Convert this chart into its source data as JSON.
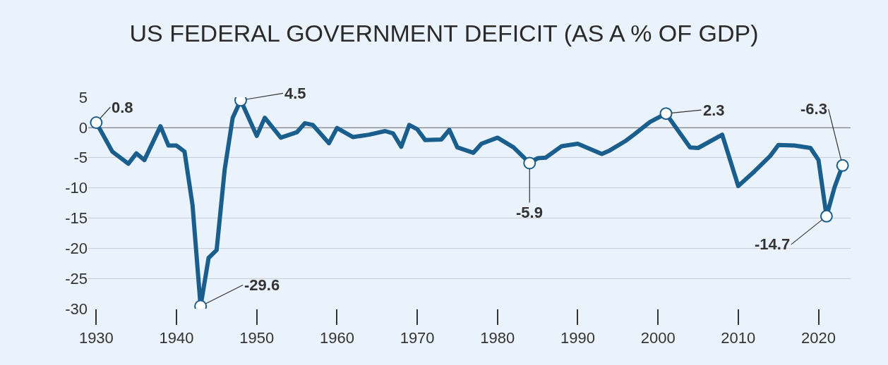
{
  "chart_data": {
    "type": "line",
    "title": "US FEDERAL GOVERNMENT DEFICIT (AS A % OF GDP)",
    "x": [
      1930,
      1932,
      1934,
      1935,
      1936,
      1938,
      1939,
      1940,
      1941,
      1942,
      1943,
      1944,
      1945,
      1946,
      1947,
      1948,
      1950,
      1951,
      1953,
      1955,
      1956,
      1957,
      1959,
      1960,
      1962,
      1964,
      1966,
      1967,
      1968,
      1969,
      1970,
      1971,
      1973,
      1974,
      1975,
      1977,
      1978,
      1980,
      1982,
      1984,
      1985,
      1986,
      1988,
      1990,
      1993,
      1994,
      1996,
      1997,
      1999,
      2001,
      2004,
      2005,
      2008,
      2010,
      2012,
      2014,
      2015,
      2017,
      2019,
      2020,
      2021,
      2022,
      2023
    ],
    "series": [
      {
        "color": "#1a5e8e",
        "values": [
          0.8,
          -4.0,
          -6.0,
          -4.3,
          -5.4,
          0.2,
          -3.0,
          -3.0,
          -4.0,
          -12.9,
          -29.6,
          -21.6,
          -20.3,
          -7.0,
          1.6,
          4.5,
          -1.4,
          1.6,
          -1.7,
          -0.8,
          0.7,
          0.4,
          -2.6,
          -0.1,
          -1.6,
          -1.2,
          -0.6,
          -1.0,
          -3.2,
          0.4,
          -0.3,
          -2.1,
          -2.0,
          -0.4,
          -3.3,
          -4.2,
          -2.7,
          -1.7,
          -3.3,
          -5.9,
          -5.1,
          -5.0,
          -3.1,
          -2.7,
          -4.4,
          -3.8,
          -2.2,
          -1.2,
          0.9,
          2.3,
          -3.3,
          -3.4,
          -1.2,
          -9.7,
          -7.3,
          -4.7,
          -2.9,
          -3.0,
          -3.4,
          -5.4,
          -14.7,
          -9.9,
          -6.3
        ]
      }
    ],
    "annotations": [
      {
        "text": "0.8",
        "x": 1930,
        "y": 0.8
      },
      {
        "text": "-29.6",
        "x": 1943,
        "y": -29.6
      },
      {
        "text": "4.5",
        "x": 1948,
        "y": 4.5
      },
      {
        "text": "-5.9",
        "x": 1984,
        "y": -5.9
      },
      {
        "text": "2.3",
        "x": 2001,
        "y": 2.3
      },
      {
        "text": "-14.7",
        "x": 2021,
        "y": -14.7
      },
      {
        "text": "-6.3",
        "x": 2023,
        "y": -6.3
      }
    ],
    "ref_lines": [
      {
        "axis": "y",
        "value": 0,
        "color": "#222222"
      }
    ],
    "xlim": [
      1929,
      2024
    ],
    "xticks": [
      1930,
      1940,
      1950,
      1960,
      1970,
      1980,
      1990,
      2000,
      2010,
      2020
    ],
    "ylim": [
      -30,
      5
    ],
    "yticks": [
      5,
      0,
      -5,
      -10,
      -15,
      -20,
      -25,
      -30
    ],
    "grid": "y",
    "line_style": "solid"
  }
}
